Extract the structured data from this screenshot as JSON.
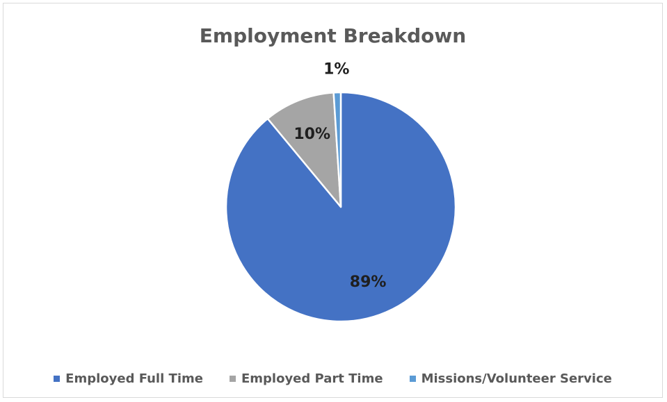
{
  "chart_data": {
    "type": "pie",
    "title": "Employment Breakdown",
    "categories": [
      "Employed Full Time",
      "Employed Part Time",
      "Missions/Volunteer Service"
    ],
    "values": [
      89,
      10,
      1
    ],
    "labels": [
      "89%",
      "10%",
      "1%"
    ],
    "colors": [
      "#4472c4",
      "#a5a5a5",
      "#5b9bd5"
    ],
    "legend_position": "bottom"
  }
}
